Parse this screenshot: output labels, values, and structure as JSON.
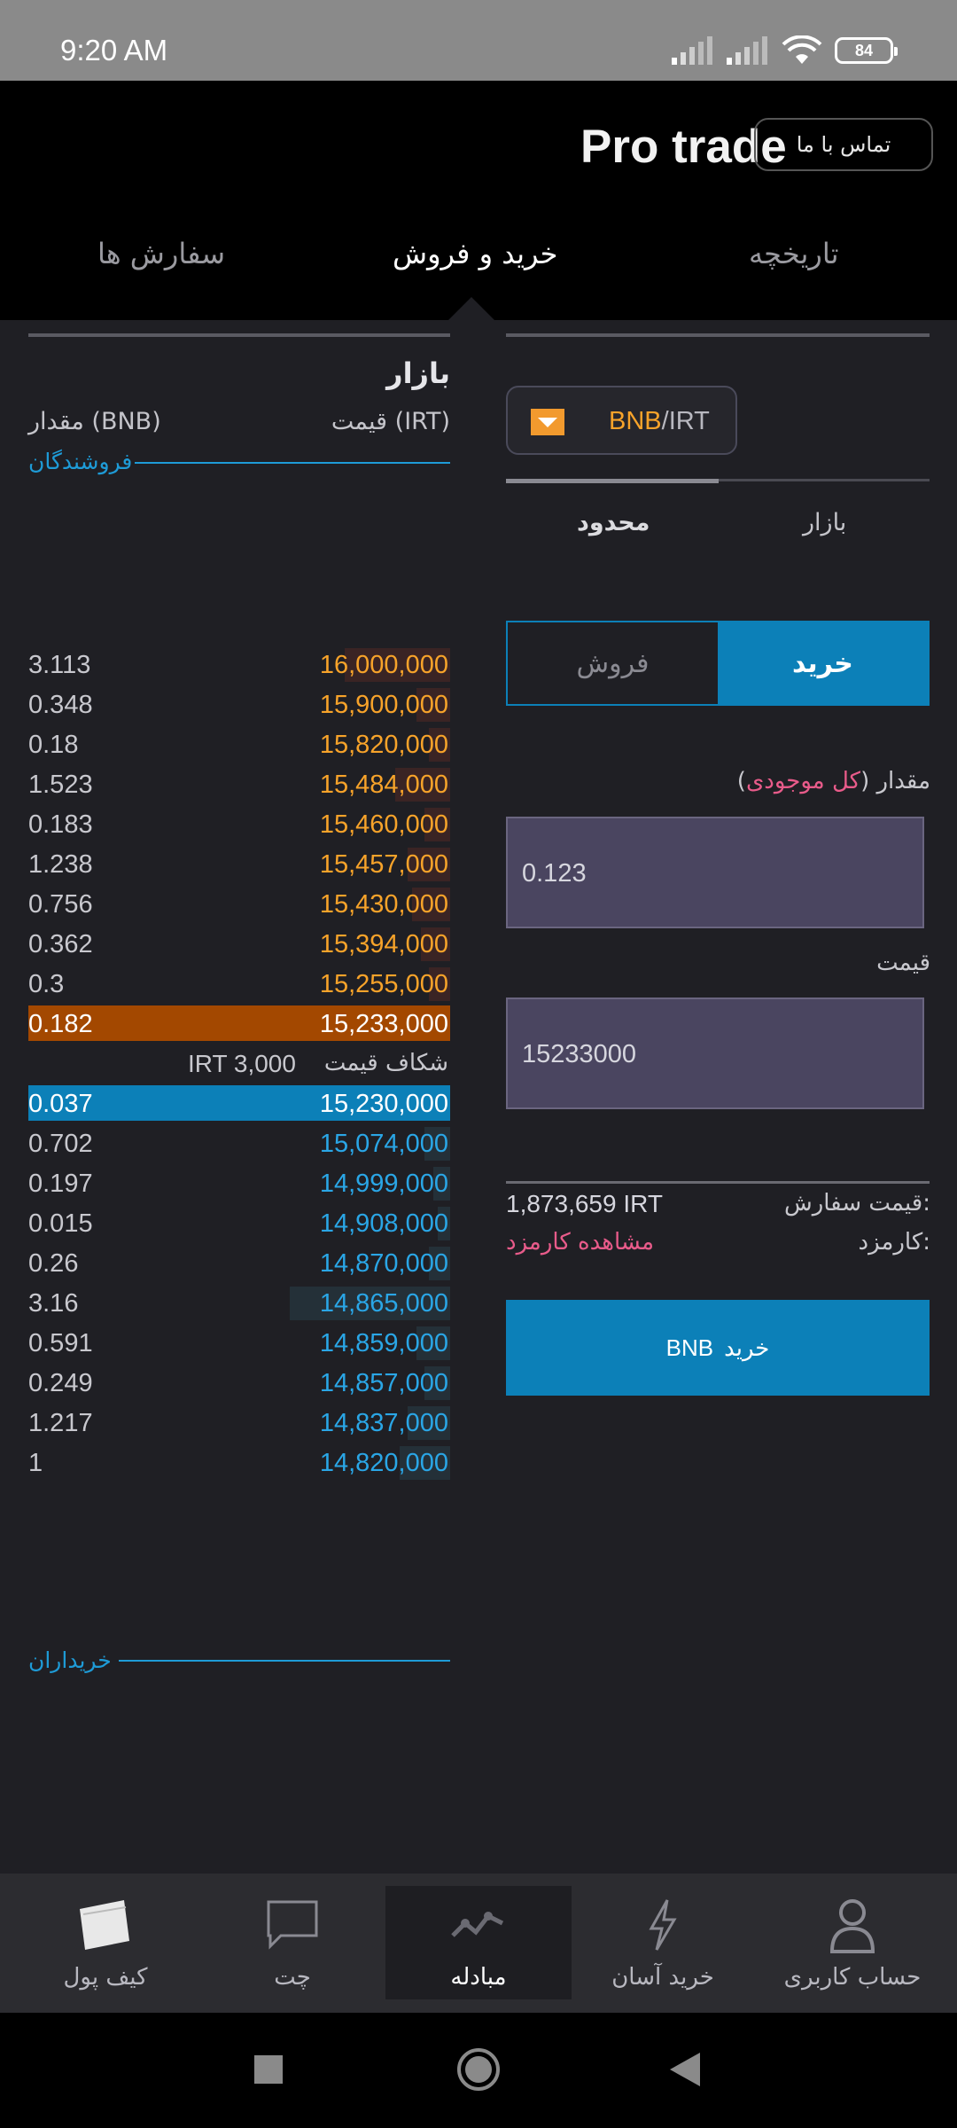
{
  "status": {
    "time": "9:20 AM",
    "battery": "84"
  },
  "header": {
    "app_title": "Pro trade",
    "contact_label": "تماس با ما",
    "tabs": {
      "history": "تاریخچه",
      "trade": "خرید و فروش",
      "orders": "سفارش ها"
    }
  },
  "orderbook": {
    "title": "بازار",
    "price_header": "قیمت (IRT)",
    "amount_header": "مقدار (BNB)",
    "sellers_label": "فروشندگان",
    "buyers_label": "خریداران",
    "spread_label": "شکاف قیمت",
    "spread_value": "IRT 3,000",
    "asks": [
      {
        "price": "16,000,000",
        "amount": "3.113",
        "depth": 0.25
      },
      {
        "price": "15,900,000",
        "amount": "0.348",
        "depth": 0.08
      },
      {
        "price": "15,820,000",
        "amount": "0.18",
        "depth": 0.05
      },
      {
        "price": "15,484,000",
        "amount": "1.523",
        "depth": 0.13
      },
      {
        "price": "15,460,000",
        "amount": "0.183",
        "depth": 0.06
      },
      {
        "price": "15,457,000",
        "amount": "1.238",
        "depth": 0.1
      },
      {
        "price": "15,430,000",
        "amount": "0.756",
        "depth": 0.09
      },
      {
        "price": "15,394,000",
        "amount": "0.362",
        "depth": 0.07
      },
      {
        "price": "15,255,000",
        "amount": "0.3",
        "depth": 0.05
      },
      {
        "price": "15,233,000",
        "amount": "0.182",
        "depth": 1
      }
    ],
    "bids": [
      {
        "price": "15,230,000",
        "amount": "0.037",
        "depth": 1
      },
      {
        "price": "15,074,000",
        "amount": "0.702",
        "depth": 0.06
      },
      {
        "price": "14,999,000",
        "amount": "0.197",
        "depth": 0.04
      },
      {
        "price": "14,908,000",
        "amount": "0.015",
        "depth": 0.03
      },
      {
        "price": "14,870,000",
        "amount": "0.26",
        "depth": 0.05
      },
      {
        "price": "14,865,000",
        "amount": "3.16",
        "depth": 0.38
      },
      {
        "price": "14,859,000",
        "amount": "0.591",
        "depth": 0.08
      },
      {
        "price": "14,857,000",
        "amount": "0.249",
        "depth": 0.06
      },
      {
        "price": "14,837,000",
        "amount": "1.217",
        "depth": 0.1
      },
      {
        "price": "14,820,000",
        "amount": "1",
        "depth": 0.12
      }
    ]
  },
  "form": {
    "pair_base": "BNB",
    "pair_sep": "/",
    "pair_quote": "IRT",
    "order_type_market": "بازار",
    "order_type_limit": "محدود",
    "side_buy": "خرید",
    "side_sell": "فروش",
    "amount_label": "مقدار",
    "amount_all_open": "(",
    "amount_all": "کل موجودی",
    "amount_all_close": ")",
    "amount_value": "0.123",
    "price_label": "قیمت",
    "price_value": "15233000",
    "order_price_label": "قیمت سفارش:",
    "order_price_value": "1,873,659 IRT",
    "fee_label": "کارمزد:",
    "fee_link": "مشاهده کارمزد",
    "buy_button_verb": "خرید",
    "buy_button_asset": "BNB"
  },
  "nav": {
    "account": "حساب کاربری",
    "easy_buy": "خرید آسان",
    "exchange": "مبادله",
    "chat": "چت",
    "wallet": "کیف پول"
  },
  "colors": {
    "accent": "#0c80b8",
    "ask": "#f7a32a",
    "bid": "#2aa6e6",
    "pink": "#e85b8a"
  }
}
